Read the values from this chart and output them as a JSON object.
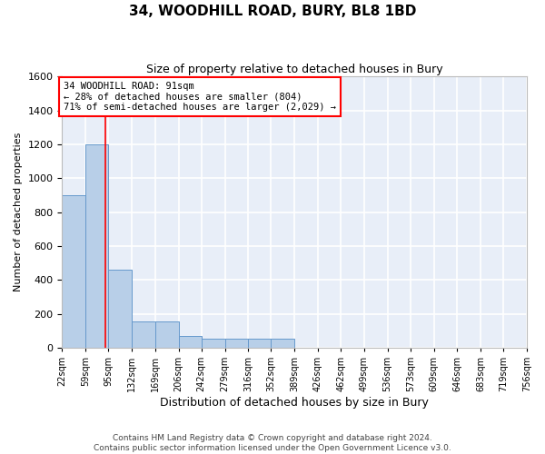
{
  "title": "34, WOODHILL ROAD, BURY, BL8 1BD",
  "subtitle": "Size of property relative to detached houses in Bury",
  "xlabel": "Distribution of detached houses by size in Bury",
  "ylabel": "Number of detached properties",
  "bin_labels": [
    "22sqm",
    "59sqm",
    "95sqm",
    "132sqm",
    "169sqm",
    "206sqm",
    "242sqm",
    "279sqm",
    "316sqm",
    "352sqm",
    "389sqm",
    "426sqm",
    "462sqm",
    "499sqm",
    "536sqm",
    "573sqm",
    "609sqm",
    "646sqm",
    "683sqm",
    "719sqm",
    "756sqm"
  ],
  "bin_edges": [
    22,
    59,
    95,
    132,
    169,
    206,
    242,
    279,
    316,
    352,
    389,
    426,
    462,
    499,
    536,
    573,
    609,
    646,
    683,
    719,
    756
  ],
  "bar_heights": [
    900,
    1200,
    460,
    155,
    155,
    70,
    55,
    55,
    55,
    55,
    0,
    0,
    0,
    0,
    0,
    0,
    0,
    0,
    0,
    0
  ],
  "bar_color": "#b8cfe8",
  "bar_edge_color": "#6699cc",
  "background_color": "#e8eef8",
  "grid_color": "#ffffff",
  "fig_background": "#ffffff",
  "red_line_x": 91,
  "annotation_text": "34 WOODHILL ROAD: 91sqm\n← 28% of detached houses are smaller (804)\n71% of semi-detached houses are larger (2,029) →",
  "ylim": [
    0,
    1600
  ],
  "yticks": [
    0,
    200,
    400,
    600,
    800,
    1000,
    1200,
    1400,
    1600
  ],
  "footnote": "Contains HM Land Registry data © Crown copyright and database right 2024.\nContains public sector information licensed under the Open Government Licence v3.0.",
  "title_fontsize": 11,
  "subtitle_fontsize": 9,
  "xlabel_fontsize": 9,
  "ylabel_fontsize": 8,
  "tick_fontsize": 7,
  "annot_fontsize": 7.5,
  "footnote_fontsize": 6.5
}
